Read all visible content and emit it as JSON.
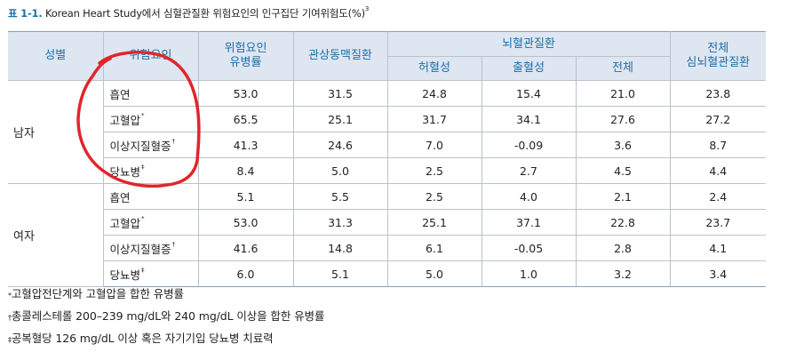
{
  "caption": {
    "label": "표 1-1.",
    "title": " Korean Heart Study에서 심혈관질환 위험요인의 인구집단 기여위험도(%)",
    "ref": "3"
  },
  "table": {
    "headers": {
      "sex": "성별",
      "factor": "위험요인",
      "prevalence": "위험요인\n유병률",
      "coronary": "관상동맥질환",
      "cerebro": "뇌혈관질환",
      "ischemic": "허혈성",
      "hemorrhagic": "출혈성",
      "cerebro_total": "전체",
      "total_cvd": "전체\n심뇌혈관질환"
    },
    "groups": [
      {
        "sex": "남자",
        "rows": [
          {
            "factor": "흡연",
            "mark": "",
            "values": [
              "53.0",
              "31.5",
              "24.8",
              "15.4",
              "21.0",
              "23.8"
            ]
          },
          {
            "factor": "고혈압",
            "mark": "*",
            "values": [
              "65.5",
              "25.1",
              "31.7",
              "34.1",
              "27.6",
              "27.2"
            ]
          },
          {
            "factor": "이상지질혈증",
            "mark": "†",
            "values": [
              "41.3",
              "24.6",
              "7.0",
              "-0.09",
              "3.6",
              "8.7"
            ]
          },
          {
            "factor": "당뇨병",
            "mark": "‡",
            "values": [
              "8.4",
              "5.0",
              "2.5",
              "2.7",
              "4.5",
              "4.4"
            ]
          }
        ]
      },
      {
        "sex": "여자",
        "rows": [
          {
            "factor": "흡연",
            "mark": "",
            "values": [
              "5.1",
              "5.5",
              "2.5",
              "4.0",
              "2.1",
              "2.4"
            ]
          },
          {
            "factor": "고혈압",
            "mark": "*",
            "values": [
              "53.0",
              "31.3",
              "25.1",
              "37.1",
              "22.8",
              "23.7"
            ]
          },
          {
            "factor": "이상지질혈증",
            "mark": "†",
            "values": [
              "41.6",
              "14.8",
              "6.1",
              "-0.05",
              "2.8",
              "4.1"
            ]
          },
          {
            "factor": "당뇨병",
            "mark": "‡",
            "values": [
              "6.0",
              "5.1",
              "5.0",
              "1.0",
              "3.2",
              "3.4"
            ]
          }
        ]
      }
    ]
  },
  "footnotes": [
    {
      "symbol": "*",
      "text": "고혈압전단계와 고혈압을 합한 유병률"
    },
    {
      "symbol": "†",
      "text": "총콜레스테롤 200–239 mg/dL와 240 mg/dL 이상을 합한 유병률"
    },
    {
      "symbol": "‡",
      "text": "공복혈당 126 mg/dL 이상 혹은 자기기입 당뇨병 치료력"
    }
  ],
  "annotation": {
    "color": "#e0262b"
  }
}
